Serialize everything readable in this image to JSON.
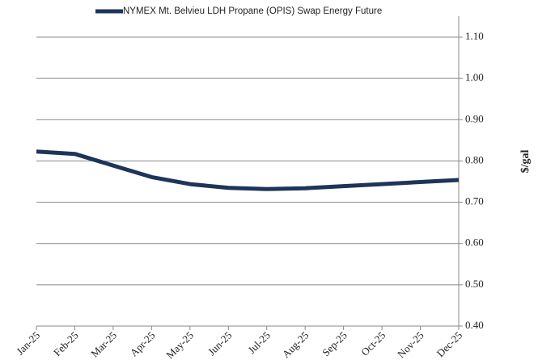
{
  "chart_data": {
    "type": "line",
    "legend_position": "top",
    "y_axis_side": "right",
    "ylabel": "$/gal",
    "categories": [
      "Jan-25",
      "Feb-25",
      "Mar-25",
      "Apr-25",
      "May-25",
      "Jun-25",
      "Jul-25",
      "Aug-25",
      "Sep-25",
      "Oct-25",
      "Nov-25",
      "Dec-25"
    ],
    "series": [
      {
        "name": "NYMEX Mt. Belvieu LDH Propane (OPIS) Swap Energy Future",
        "color": "#1c3559",
        "values": [
          0.823,
          0.817,
          0.789,
          0.761,
          0.744,
          0.735,
          0.732,
          0.734,
          0.739,
          0.744,
          0.749,
          0.754
        ]
      }
    ],
    "ylim": [
      0.4,
      1.1
    ],
    "yticks": [
      {
        "value": 0.4,
        "label": "0.40"
      },
      {
        "value": 0.5,
        "label": "0.50"
      },
      {
        "value": 0.6,
        "label": "0.60"
      },
      {
        "value": 0.7,
        "label": "0.70"
      },
      {
        "value": 0.8,
        "label": "0.80"
      },
      {
        "value": 0.9,
        "label": "0.90"
      },
      {
        "value": 1.0,
        "label": "1.00"
      },
      {
        "value": 1.1,
        "label": "1.10"
      }
    ],
    "grid": true
  }
}
